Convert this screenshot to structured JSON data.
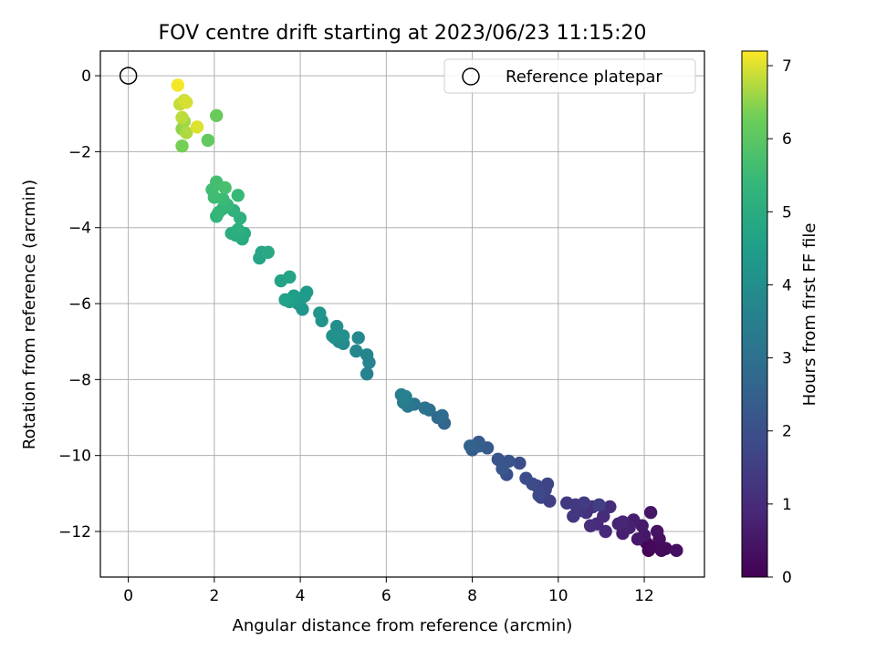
{
  "chart_data": {
    "type": "scatter",
    "title": "FOV centre drift starting at 2023/06/23 11:15:20",
    "xlabel": "Angular distance from reference (arcmin)",
    "ylabel": "Rotation from reference (arcmin)",
    "xlim": [
      -0.65,
      13.4
    ],
    "ylim": [
      -13.2,
      0.65
    ],
    "xticks": [
      0,
      2,
      4,
      6,
      8,
      10,
      12
    ],
    "yticks": [
      0,
      -2,
      -4,
      -6,
      -8,
      -10,
      -12
    ],
    "grid": true,
    "legend": {
      "placement": "top-right",
      "entries": [
        "Reference platepar"
      ]
    },
    "colorbar": {
      "label": "Hours from first FF file",
      "colormap": "viridis",
      "range": [
        0,
        7.2
      ],
      "ticks": [
        0,
        1,
        2,
        3,
        4,
        5,
        6,
        7
      ]
    },
    "reference_point": {
      "x": 0,
      "y": 0
    },
    "points": [
      [
        12.1,
        -12.5,
        0.05
      ],
      [
        12.05,
        -12.3,
        0.1
      ],
      [
        12.2,
        -12.4,
        0.15
      ],
      [
        12.4,
        -12.5,
        0.2
      ],
      [
        12.5,
        -12.45,
        0.25
      ],
      [
        12.35,
        -12.2,
        0.3
      ],
      [
        12.75,
        -12.5,
        0.35
      ],
      [
        12.3,
        -12.0,
        0.4
      ],
      [
        12.15,
        -11.5,
        0.45
      ],
      [
        12.0,
        -12.1,
        0.5
      ],
      [
        11.85,
        -12.2,
        0.55
      ],
      [
        11.95,
        -11.85,
        0.6
      ],
      [
        11.75,
        -11.7,
        0.65
      ],
      [
        11.5,
        -12.05,
        0.7
      ],
      [
        11.65,
        -11.9,
        0.75
      ],
      [
        11.4,
        -11.8,
        0.8
      ],
      [
        11.5,
        -11.75,
        0.85
      ],
      [
        11.1,
        -12.0,
        0.9
      ],
      [
        10.9,
        -11.8,
        0.95
      ],
      [
        11.05,
        -11.6,
        1.0
      ],
      [
        11.2,
        -11.35,
        1.05
      ],
      [
        10.75,
        -11.85,
        1.1
      ],
      [
        10.65,
        -11.5,
        1.15
      ],
      [
        10.8,
        -11.35,
        1.2
      ],
      [
        10.5,
        -11.45,
        1.25
      ],
      [
        10.35,
        -11.6,
        1.3
      ],
      [
        10.4,
        -11.3,
        1.35
      ],
      [
        10.2,
        -11.25,
        1.4
      ],
      [
        10.6,
        -11.25,
        1.45
      ],
      [
        10.95,
        -11.3,
        1.5
      ],
      [
        9.8,
        -11.2,
        1.55
      ],
      [
        9.6,
        -11.1,
        1.6
      ],
      [
        9.7,
        -10.9,
        1.65
      ],
      [
        9.75,
        -10.75,
        1.7
      ],
      [
        9.5,
        -10.8,
        1.75
      ],
      [
        9.55,
        -11.05,
        1.8
      ],
      [
        9.4,
        -10.75,
        1.85
      ],
      [
        9.25,
        -10.6,
        1.9
      ],
      [
        9.1,
        -10.2,
        1.95
      ],
      [
        8.8,
        -10.5,
        2.0
      ],
      [
        8.7,
        -10.2,
        2.05
      ],
      [
        8.85,
        -10.15,
        2.1
      ],
      [
        8.6,
        -10.1,
        2.15
      ],
      [
        8.7,
        -10.35,
        2.2
      ],
      [
        8.35,
        -9.8,
        2.25
      ],
      [
        8.15,
        -9.65,
        2.3
      ],
      [
        8.0,
        -9.85,
        2.35
      ],
      [
        8.15,
        -9.75,
        2.45
      ],
      [
        7.95,
        -9.75,
        2.55
      ],
      [
        7.35,
        -9.15,
        2.65
      ],
      [
        7.2,
        -9.0,
        2.75
      ],
      [
        7.3,
        -8.95,
        2.85
      ],
      [
        7.0,
        -8.8,
        2.95
      ],
      [
        6.9,
        -8.75,
        3.05
      ],
      [
        6.65,
        -8.65,
        3.15
      ],
      [
        6.5,
        -8.7,
        3.25
      ],
      [
        6.4,
        -8.6,
        3.35
      ],
      [
        6.35,
        -8.4,
        3.45
      ],
      [
        6.45,
        -8.45,
        3.55
      ],
      [
        5.55,
        -7.85,
        3.6
      ],
      [
        5.6,
        -7.55,
        3.65
      ],
      [
        5.55,
        -7.35,
        3.7
      ],
      [
        5.3,
        -7.25,
        3.75
      ],
      [
        5.35,
        -6.9,
        3.8
      ],
      [
        5.0,
        -7.05,
        3.85
      ],
      [
        4.9,
        -7.0,
        3.9
      ],
      [
        4.8,
        -6.9,
        3.95
      ],
      [
        4.85,
        -6.6,
        4.0
      ],
      [
        5.0,
        -6.85,
        4.05
      ],
      [
        4.75,
        -6.85,
        4.1
      ],
      [
        4.5,
        -6.45,
        4.15
      ],
      [
        4.45,
        -6.25,
        4.2
      ],
      [
        4.05,
        -6.15,
        4.25
      ],
      [
        3.95,
        -6.0,
        4.3
      ],
      [
        4.1,
        -5.8,
        4.35
      ],
      [
        4.0,
        -5.9,
        4.4
      ],
      [
        4.15,
        -5.7,
        4.45
      ],
      [
        3.85,
        -5.8,
        4.5
      ],
      [
        3.75,
        -5.95,
        4.55
      ],
      [
        3.65,
        -5.9,
        4.6
      ],
      [
        3.55,
        -5.4,
        4.65
      ],
      [
        3.75,
        -5.3,
        4.7
      ],
      [
        3.05,
        -4.8,
        4.75
      ],
      [
        3.1,
        -4.65,
        4.8
      ],
      [
        3.25,
        -4.65,
        4.85
      ],
      [
        2.65,
        -4.3,
        4.9
      ],
      [
        2.7,
        -4.15,
        4.95
      ],
      [
        2.5,
        -4.2,
        5.0
      ],
      [
        2.4,
        -4.15,
        5.05
      ],
      [
        2.55,
        -4.05,
        5.1
      ],
      [
        2.6,
        -3.75,
        5.15
      ],
      [
        2.45,
        -3.55,
        5.2
      ],
      [
        2.2,
        -3.5,
        5.25
      ],
      [
        2.05,
        -3.7,
        5.3
      ],
      [
        2.1,
        -3.6,
        5.35
      ],
      [
        2.3,
        -3.4,
        5.4
      ],
      [
        2.55,
        -3.15,
        5.45
      ],
      [
        2.2,
        -3.25,
        5.5
      ],
      [
        2.0,
        -3.2,
        5.55
      ],
      [
        1.95,
        -3.0,
        5.6
      ],
      [
        2.05,
        -2.8,
        5.65
      ],
      [
        2.25,
        -2.95,
        5.7
      ],
      [
        1.85,
        -1.7,
        6.1
      ],
      [
        2.05,
        -1.05,
        6.2
      ],
      [
        1.25,
        -1.85,
        6.35
      ],
      [
        1.25,
        -1.4,
        6.5
      ],
      [
        1.3,
        -1.2,
        6.6
      ],
      [
        1.35,
        -1.5,
        6.7
      ],
      [
        1.25,
        -1.1,
        6.8
      ],
      [
        1.2,
        -0.75,
        6.85
      ],
      [
        1.3,
        -0.65,
        6.9
      ],
      [
        1.35,
        -0.7,
        6.95
      ],
      [
        1.6,
        -1.35,
        7.0
      ],
      [
        1.15,
        -0.25,
        7.15
      ]
    ]
  }
}
